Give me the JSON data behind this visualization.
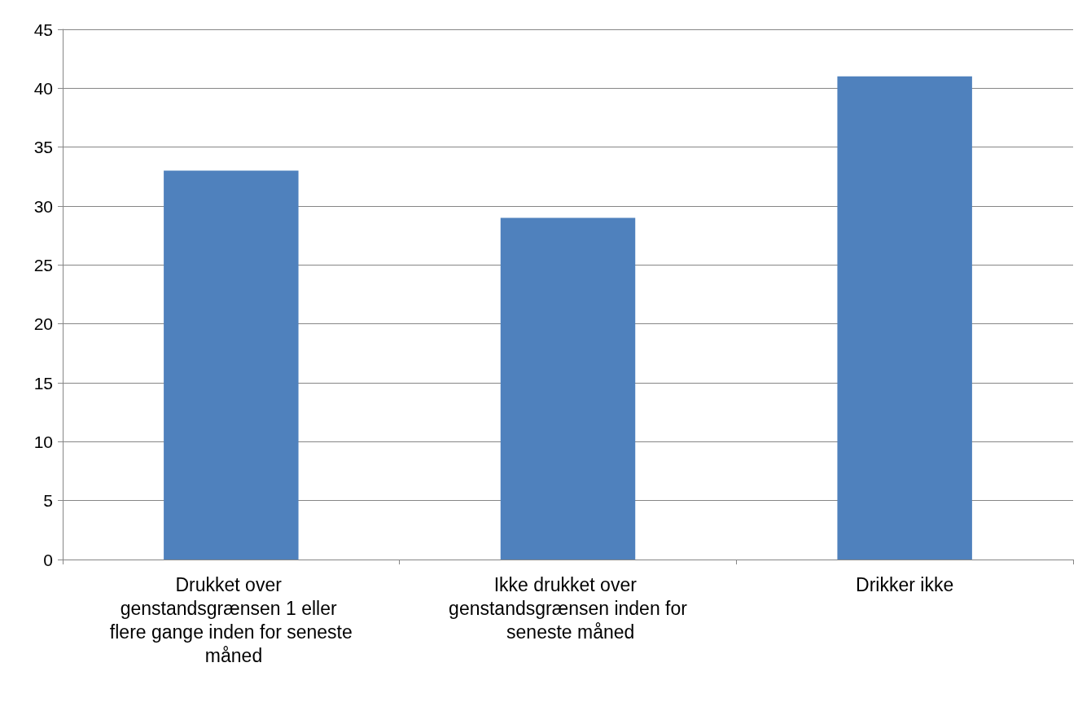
{
  "chart_data": {
    "type": "bar",
    "categories": [
      "Drukket over genstandsgrænsen 1 eller flere gange inden for seneste måned",
      "Ikke drukket over genstandsgrænsen inden for seneste måned",
      "Drikker ikke"
    ],
    "values": [
      33,
      29,
      41
    ],
    "color": "#4f81bd",
    "ylim": [
      0,
      45
    ],
    "yticks": [
      0,
      5,
      10,
      15,
      20,
      25,
      30,
      35,
      40,
      45
    ],
    "grid": "y"
  }
}
